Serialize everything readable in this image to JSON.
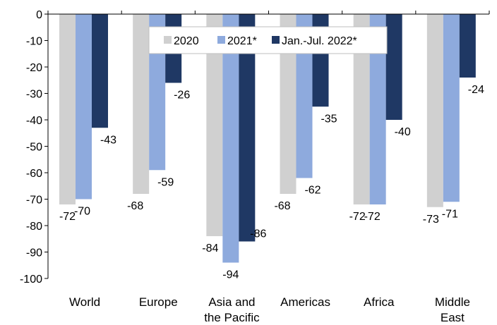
{
  "chart_data": {
    "type": "bar",
    "categories": [
      [
        "World"
      ],
      [
        "Europe"
      ],
      [
        "Asia and",
        "the Pacific"
      ],
      [
        "Americas"
      ],
      [
        "Africa"
      ],
      [
        "Middle",
        "East"
      ]
    ],
    "series": [
      {
        "name": "2020",
        "color": "#d0d0d0",
        "values": [
          -72,
          -68,
          -84,
          -68,
          -72,
          -73
        ]
      },
      {
        "name": "2021*",
        "color": "#8eaadd",
        "values": [
          -70,
          -59,
          -94,
          -62,
          -72,
          -71
        ]
      },
      {
        "name": "Jan.-Jul. 2022*",
        "color": "#1f3864",
        "values": [
          -43,
          -26,
          -86,
          -35,
          -40,
          -24
        ]
      }
    ],
    "ylim": [
      -100,
      0
    ],
    "yticks": [
      0,
      -10,
      -20,
      -30,
      -40,
      -50,
      -60,
      -70,
      -80,
      -90,
      -100
    ],
    "legend_position": "top-center",
    "grid": false
  }
}
